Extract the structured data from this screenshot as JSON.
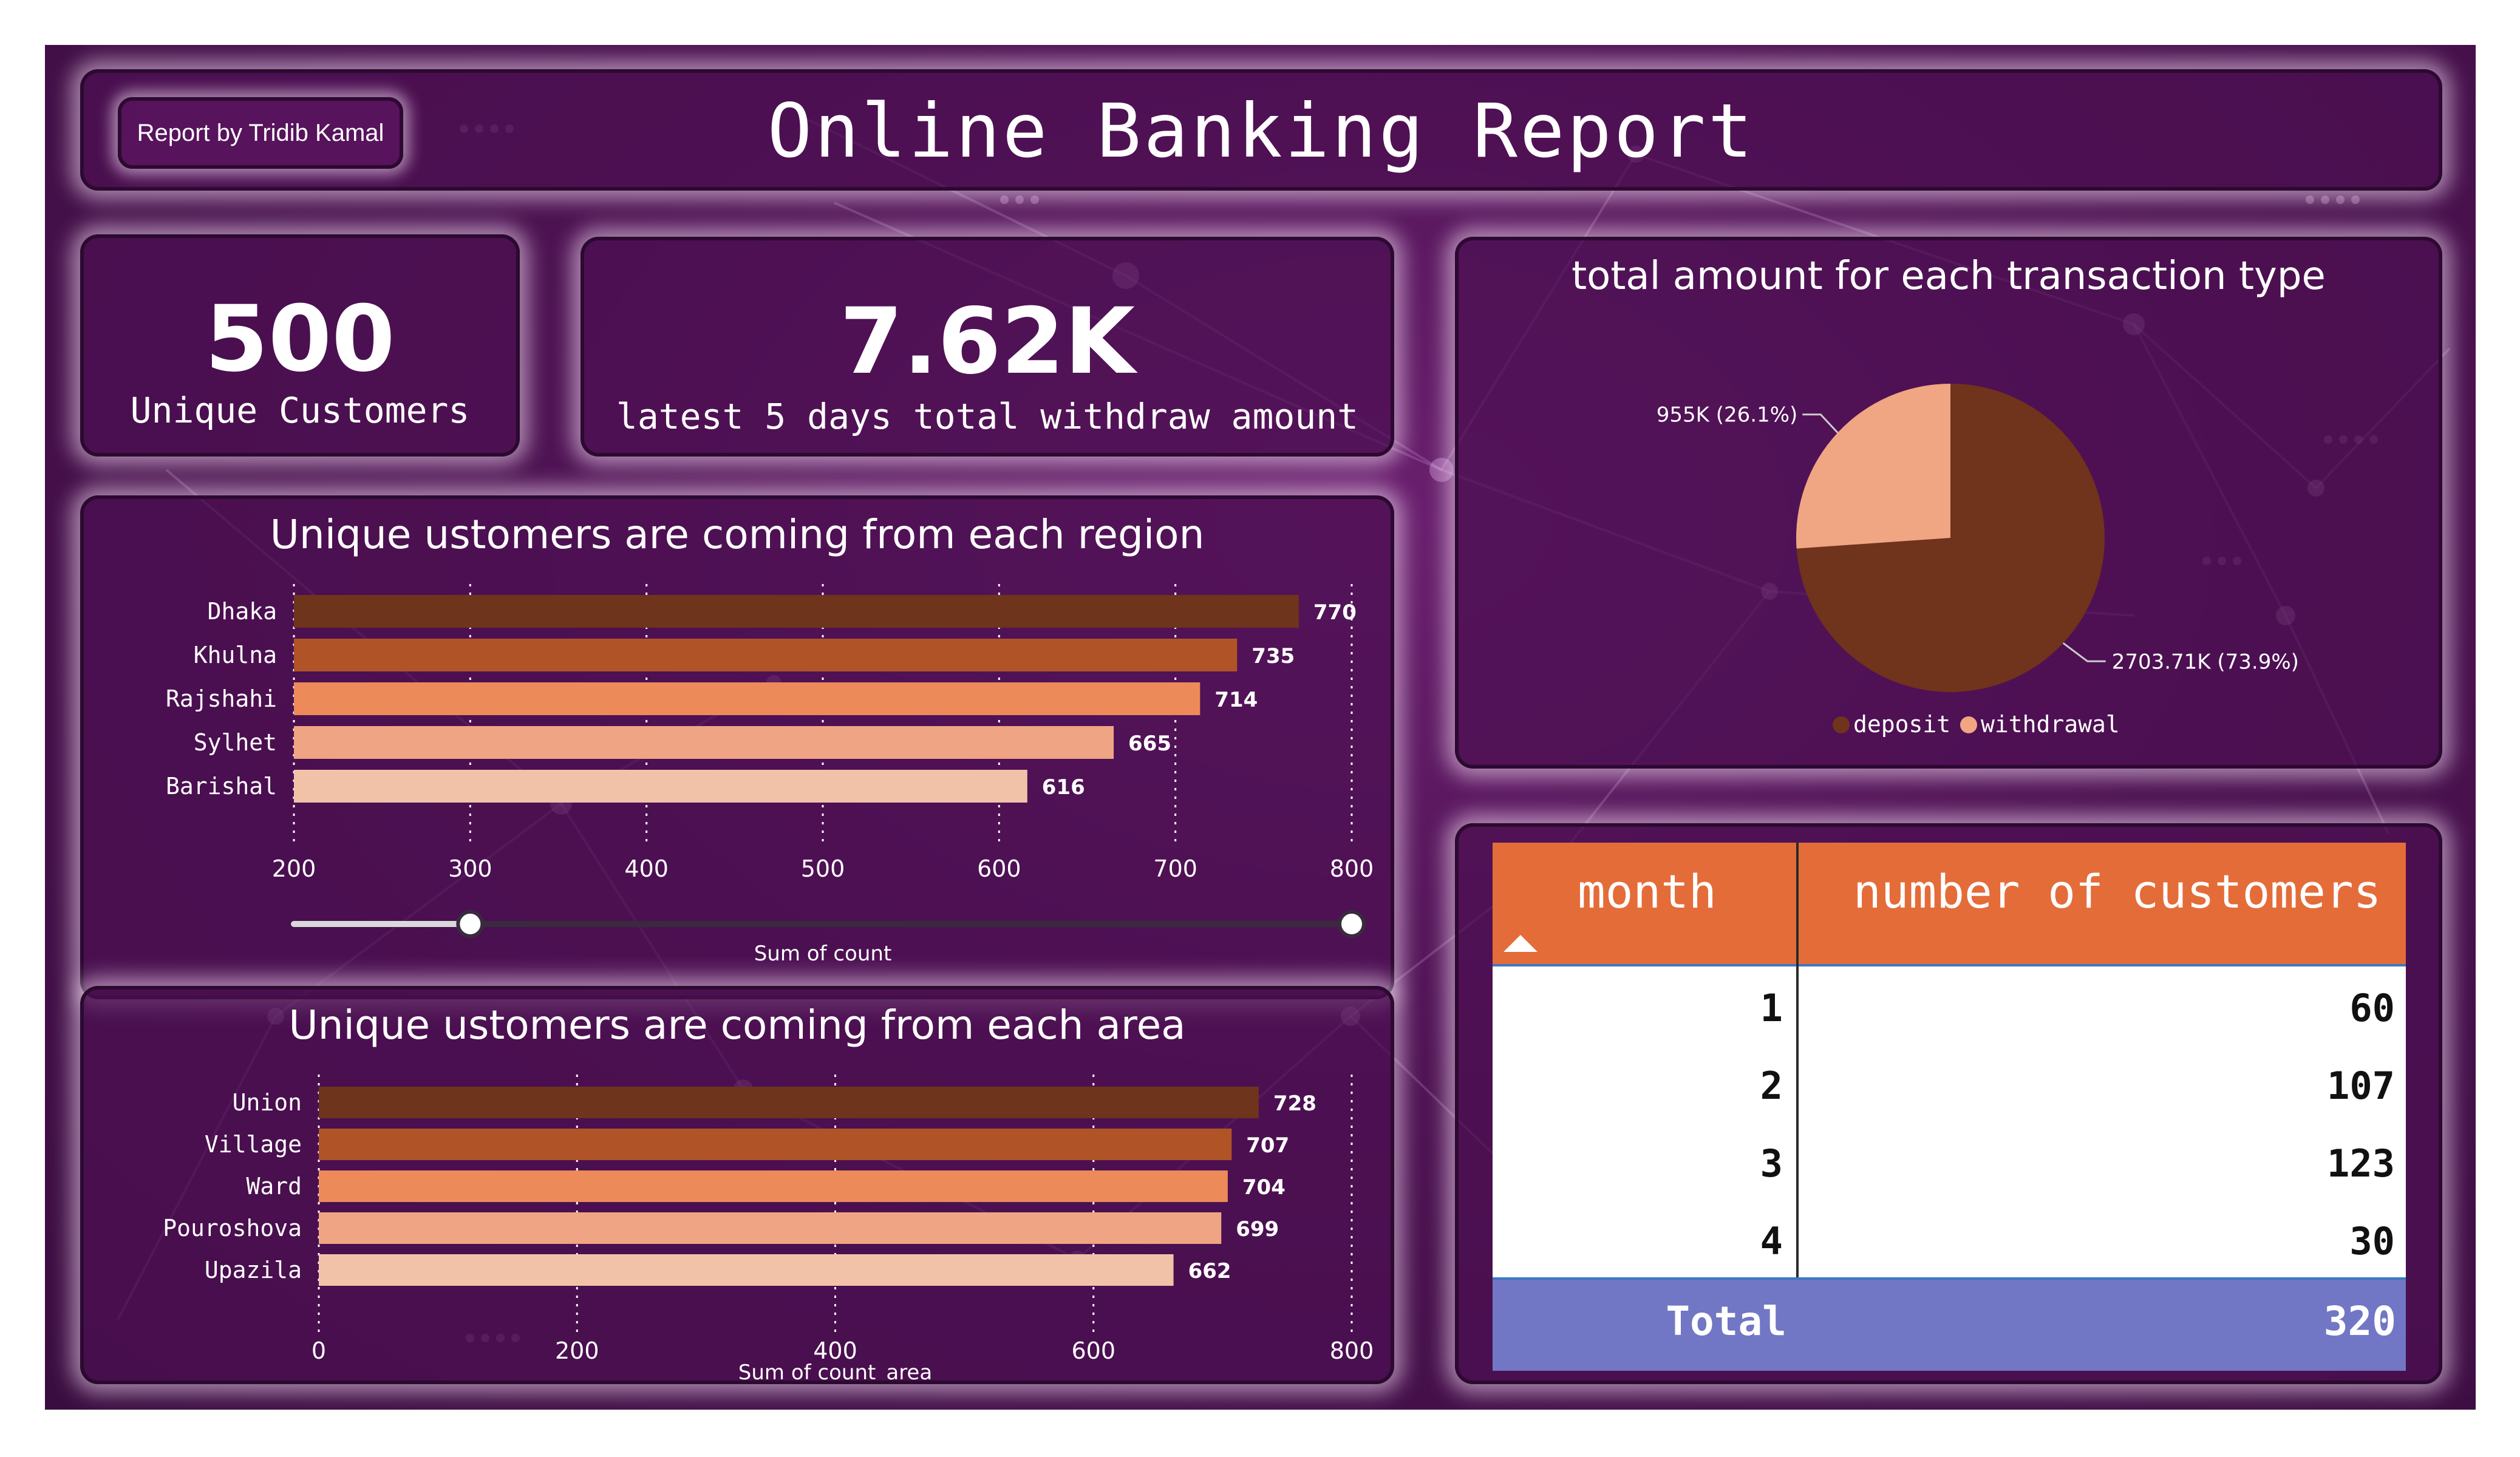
{
  "header": {
    "title": "Online Banking Report",
    "report_by": "Report by Tridib Kamal"
  },
  "kpis": [
    {
      "value": "500",
      "label": "Unique Customers"
    },
    {
      "value": "7.62K",
      "label": "latest 5 days total withdraw amount"
    }
  ],
  "colors": {
    "background": "#4e1353",
    "panel": "#4c0f52",
    "header_orange": "#e46c39",
    "total_row": "#7177c4",
    "bar1": "#6e341c",
    "bar2": "#b05428",
    "bar3": "#ec8a5a",
    "bar4": "#efa583",
    "bar5": "#f2c2a8",
    "deposit": "#70331c",
    "withdrawal": "#f0a583"
  },
  "chart_data": [
    {
      "type": "bar",
      "orientation": "horizontal",
      "title": "Unique ustomers are coming from each region",
      "categories": [
        "Dhaka",
        "Khulna",
        "Rajshahi",
        "Sylhet",
        "Barishal"
      ],
      "values": [
        770,
        735,
        714,
        665,
        616
      ],
      "xlabel": "Sum of count",
      "xlim": [
        200,
        800
      ],
      "xticks": [
        "200",
        "300",
        "400",
        "500",
        "600",
        "700",
        "800"
      ],
      "grid": true
    },
    {
      "type": "bar",
      "orientation": "horizontal",
      "title": "Unique ustomers are coming from each area",
      "categories": [
        "Union",
        "Village",
        "Ward",
        "Pouroshova",
        "Upazila"
      ],
      "values": [
        728,
        707,
        704,
        699,
        662
      ],
      "xlabel": "Sum of count_area",
      "xlim": [
        0,
        800
      ],
      "xticks": [
        "0",
        "200",
        "400",
        "600",
        "800"
      ],
      "grid": true
    },
    {
      "type": "pie",
      "title": "total amount for each transaction type",
      "labels": [
        "deposit",
        "withdrawal"
      ],
      "values": [
        2703.71,
        955
      ],
      "data_labels": [
        "2703.71K (73.9%)",
        "955K (26.1%)"
      ],
      "legend": [
        "deposit",
        "withdrawal"
      ],
      "legend_placement": "bottom"
    },
    {
      "type": "table",
      "columns": [
        "month",
        "number of customers"
      ],
      "rows": [
        [
          "1",
          "60"
        ],
        [
          "2",
          "107"
        ],
        [
          "3",
          "123"
        ],
        [
          "4",
          "30"
        ]
      ],
      "total": [
        "Total",
        "320"
      ]
    }
  ],
  "slider": {
    "min": 300,
    "max": 800
  }
}
